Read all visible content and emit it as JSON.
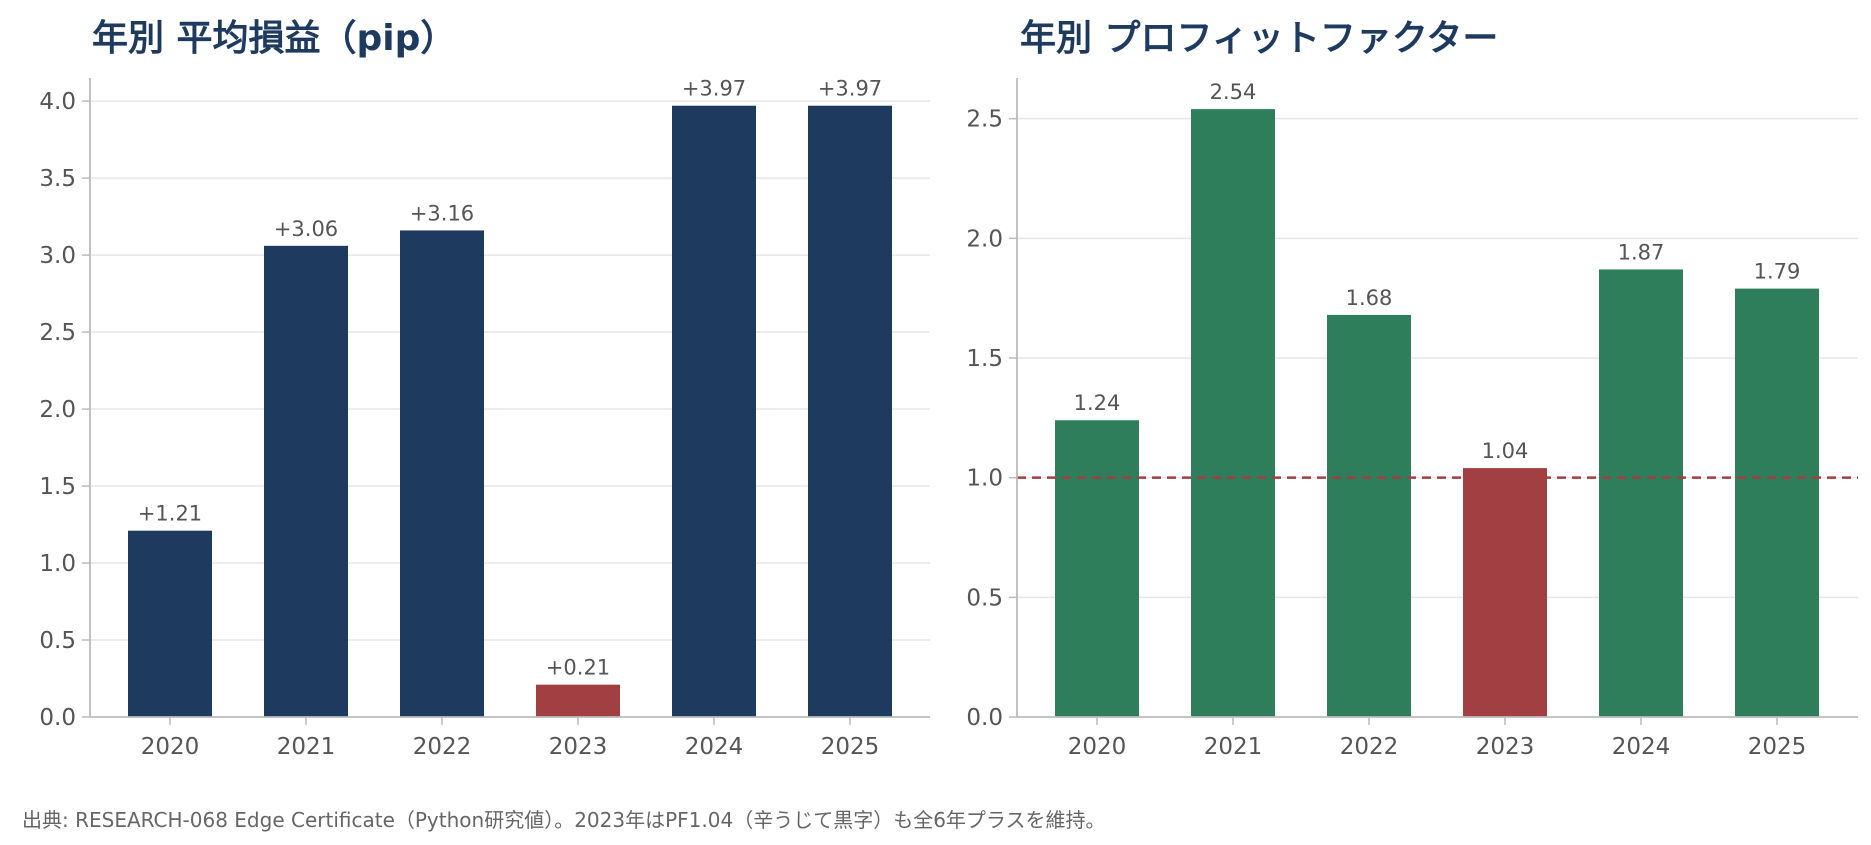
{
  "colors": {
    "primary": "#1f3a5f",
    "negative": "#a13f42",
    "positive": "#2e7d5b",
    "grid": "#e6e6e6",
    "axis": "#bbbbbb"
  },
  "chart_data": [
    {
      "type": "bar",
      "title": "年別 平均損益（pip）",
      "categories": [
        "2020",
        "2021",
        "2022",
        "2023",
        "2024",
        "2025"
      ],
      "values": [
        1.21,
        3.06,
        3.16,
        0.21,
        3.97,
        3.97
      ],
      "data_labels": [
        "+1.21",
        "+3.06",
        "+3.16",
        "+0.21",
        "+3.97",
        "+3.97"
      ],
      "highlight_category": "2023",
      "ylim": [
        0,
        4.15
      ],
      "yticks": [
        "0.0",
        "0.5",
        "1.0",
        "1.5",
        "2.0",
        "2.5",
        "3.0",
        "3.5",
        "4.0"
      ],
      "grid": true,
      "xlabel": "",
      "ylabel": ""
    },
    {
      "type": "bar",
      "title": "年別 プロフィットファクター",
      "categories": [
        "2020",
        "2021",
        "2022",
        "2023",
        "2024",
        "2025"
      ],
      "values": [
        1.24,
        2.54,
        1.68,
        1.04,
        1.87,
        1.79
      ],
      "data_labels": [
        "1.24",
        "2.54",
        "1.68",
        "1.04",
        "1.87",
        "1.79"
      ],
      "highlight_category": "2023",
      "reference_line": 1.0,
      "ylim": [
        0,
        2.67
      ],
      "yticks": [
        "0.0",
        "0.5",
        "1.0",
        "1.5",
        "2.0",
        "2.5"
      ],
      "grid": true,
      "xlabel": "",
      "ylabel": ""
    }
  ],
  "footnote": "出典: RESEARCH-068 Edge Certificate（Python研究値）。2023年はPF1.04（辛うじて黒字）も全6年プラスを維持。"
}
